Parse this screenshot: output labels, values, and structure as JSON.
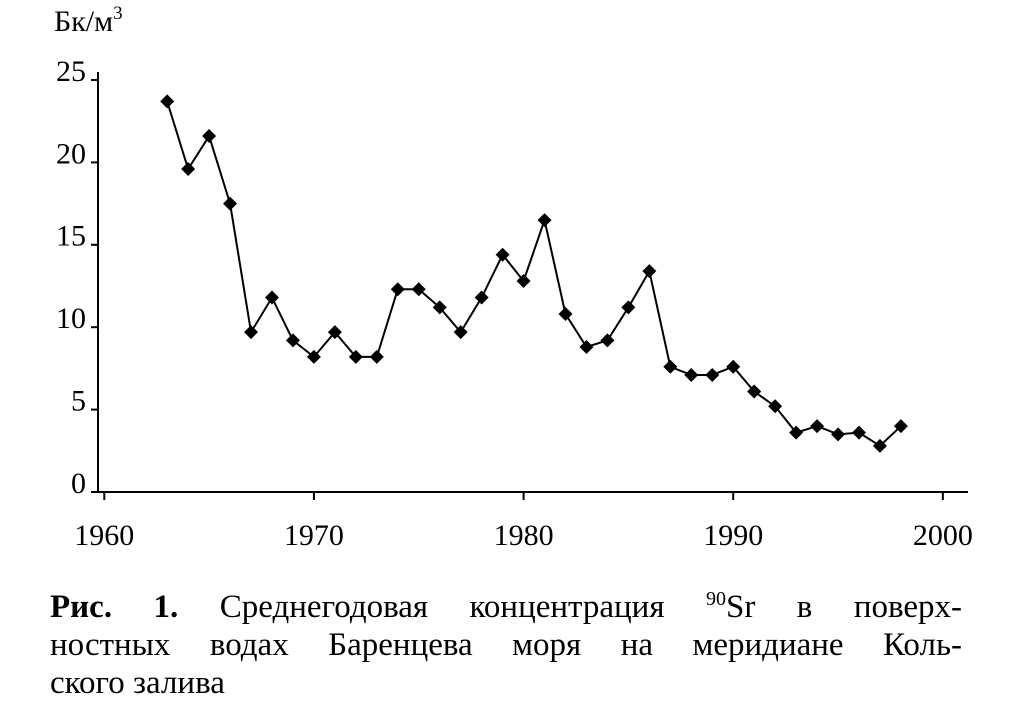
{
  "chart_data": {
    "type": "line",
    "ylabel": "Бк/м",
    "ylabel_sup": "3",
    "x": [
      1963,
      1964,
      1965,
      1966,
      1967,
      1968,
      1969,
      1970,
      1971,
      1972,
      1973,
      1974,
      1975,
      1976,
      1977,
      1978,
      1979,
      1980,
      1981,
      1982,
      1983,
      1984,
      1985,
      1986,
      1987,
      1988,
      1989,
      1990,
      1991,
      1992,
      1993,
      1994,
      1995,
      1996,
      1997,
      1998
    ],
    "values": [
      23.7,
      19.6,
      21.6,
      17.5,
      9.7,
      11.8,
      9.2,
      8.2,
      9.7,
      8.2,
      8.2,
      12.3,
      12.3,
      11.2,
      9.7,
      11.8,
      14.4,
      12.8,
      16.5,
      10.8,
      8.8,
      9.2,
      11.2,
      13.4,
      7.6,
      7.1,
      7.1,
      7.6,
      6.1,
      5.2,
      3.6,
      4.0,
      3.5,
      3.6,
      2.8,
      4.0
    ],
    "color": "#000000",
    "xlim": [
      1959.7,
      2001.2
    ],
    "xticks": [
      1960,
      1970,
      1980,
      1990,
      2000
    ],
    "ylim": [
      0,
      25
    ],
    "yticks": [
      0,
      5,
      10,
      15,
      20,
      25
    ],
    "caption_label": "Рис. 1.",
    "caption_line1a": "Среднегодовая концентрация",
    "caption_isotope": "90",
    "caption_line1b": "Sr в поверх-",
    "caption_line2": "ностных водах Баренцева моря на меридиане Коль-",
    "caption_line3": "ского залива"
  }
}
